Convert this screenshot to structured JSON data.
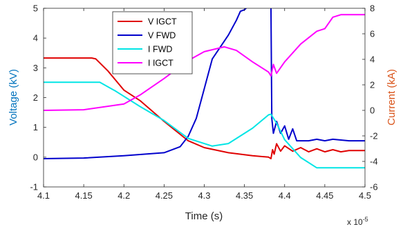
{
  "chart_data": {
    "type": "line",
    "xlabel": "Time (s)",
    "x_exponent_label": "x 10",
    "x_exponent_power": "-5",
    "xlim": [
      4.1,
      4.5
    ],
    "x_ticks": [
      4.1,
      4.15,
      4.2,
      4.25,
      4.3,
      4.35,
      4.4,
      4.45,
      4.5
    ],
    "x_tick_labels": [
      "4.1",
      "4.15",
      "4.2",
      "4.25",
      "4.3",
      "4.35",
      "4.4",
      "4.45",
      "4.5"
    ],
    "left_axis": {
      "label": "Voltage (kV)",
      "ylim": [
        -1,
        5
      ],
      "ticks": [
        -1,
        0,
        1,
        2,
        3,
        4,
        5
      ],
      "tick_labels": [
        "-1",
        "0",
        "1",
        "2",
        "3",
        "4",
        "5"
      ],
      "color": "#0072BD"
    },
    "right_axis": {
      "label": "Current (kA)",
      "ylim": [
        -6,
        8
      ],
      "ticks": [
        -6,
        -4,
        -2,
        0,
        2,
        4,
        6,
        8
      ],
      "tick_labels": [
        "-6",
        "-4",
        "-2",
        "0",
        "2",
        "4",
        "6",
        "8"
      ],
      "color": "#D95319"
    },
    "grid": false,
    "legend_position": "top-center",
    "series": [
      {
        "name": "V IGCT",
        "axis": "left",
        "color": "#E00000",
        "x": [
          4.1,
          4.16,
          4.165,
          4.18,
          4.2,
          4.22,
          4.25,
          4.28,
          4.3,
          4.33,
          4.36,
          4.38,
          4.383,
          4.385,
          4.387,
          4.39,
          4.395,
          4.4,
          4.41,
          4.42,
          4.43,
          4.44,
          4.45,
          4.46,
          4.47,
          4.48,
          4.5
        ],
        "y": [
          3.33,
          3.33,
          3.3,
          2.9,
          2.25,
          1.9,
          1.2,
          0.55,
          0.32,
          0.15,
          0.05,
          0.0,
          -0.05,
          0.25,
          0.1,
          0.45,
          0.2,
          0.38,
          0.2,
          0.32,
          0.18,
          0.28,
          0.18,
          0.25,
          0.18,
          0.22,
          0.22
        ]
      },
      {
        "name": "V FWD",
        "axis": "left",
        "color": "#0000CC",
        "x": [
          4.1,
          4.15,
          4.2,
          4.25,
          4.27,
          4.28,
          4.29,
          4.3,
          4.31,
          4.33,
          4.34,
          4.345,
          4.35,
          4.37,
          4.38,
          4.382,
          4.383,
          4.384,
          4.386,
          4.39,
          4.395,
          4.4,
          4.405,
          4.41,
          4.415,
          4.42,
          4.43,
          4.44,
          4.45,
          4.46,
          4.48,
          4.5
        ],
        "y": [
          -0.05,
          -0.03,
          0.05,
          0.15,
          0.35,
          0.7,
          1.3,
          2.3,
          3.3,
          4.1,
          4.6,
          4.9,
          4.95,
          5.45,
          5.75,
          6.5,
          5.0,
          1.3,
          0.8,
          1.2,
          0.8,
          1.05,
          0.6,
          0.95,
          0.55,
          0.55,
          0.55,
          0.6,
          0.55,
          0.6,
          0.55,
          0.55
        ]
      },
      {
        "name": "I FWD",
        "axis": "right",
        "color": "#00E5E5",
        "x": [
          4.1,
          4.17,
          4.19,
          4.22,
          4.25,
          4.28,
          4.31,
          4.33,
          4.36,
          4.38,
          4.383,
          4.39,
          4.4,
          4.42,
          4.44,
          4.45,
          4.5
        ],
        "y": [
          2.2,
          2.2,
          1.5,
          0.3,
          -0.8,
          -2.2,
          -2.8,
          -2.6,
          -1.4,
          -0.35,
          -0.3,
          -1.0,
          -2.3,
          -3.7,
          -4.5,
          -4.5,
          -4.5
        ]
      },
      {
        "name": "I IGCT",
        "axis": "right",
        "color": "#FF00FF",
        "x": [
          4.1,
          4.15,
          4.2,
          4.22,
          4.25,
          4.28,
          4.3,
          4.325,
          4.34,
          4.36,
          4.38,
          4.383,
          4.386,
          4.39,
          4.4,
          4.42,
          4.44,
          4.45,
          4.46,
          4.47,
          4.5
        ],
        "y": [
          0.0,
          0.05,
          0.5,
          1.2,
          2.5,
          3.9,
          4.6,
          4.98,
          4.7,
          3.8,
          3.0,
          2.7,
          3.6,
          2.9,
          3.8,
          5.2,
          6.2,
          6.4,
          7.3,
          7.5,
          7.5
        ]
      }
    ]
  }
}
